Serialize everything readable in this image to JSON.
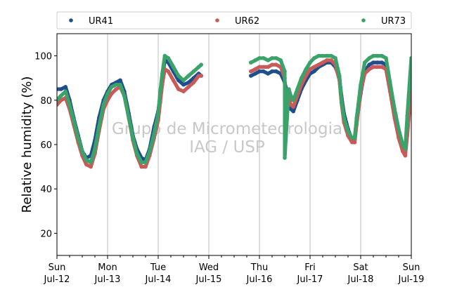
{
  "chart_data": {
    "type": "scatter",
    "ylabel": "Relative humidity (%)",
    "xlabel": "",
    "xlim": [
      0,
      7
    ],
    "ylim": [
      10,
      110
    ],
    "yticks": [
      20,
      40,
      60,
      80,
      100
    ],
    "xticks": [
      {
        "day": 0,
        "weekday": "Sun",
        "date": "Jul-12"
      },
      {
        "day": 1,
        "weekday": "Mon",
        "date": "Jul-13"
      },
      {
        "day": 2,
        "weekday": "Tue",
        "date": "Jul-14"
      },
      {
        "day": 3,
        "weekday": "Wed",
        "date": "Jul-15"
      },
      {
        "day": 4,
        "weekday": "Thu",
        "date": "Jul-16"
      },
      {
        "day": 5,
        "weekday": "Fri",
        "date": "Jul-17"
      },
      {
        "day": 6,
        "weekday": "Sat",
        "date": "Jul-18"
      },
      {
        "day": 7,
        "weekday": "Sun",
        "date": "Jul-19"
      }
    ],
    "grid": "vertical",
    "legend_position": "top",
    "watermark": [
      "Grupo de Micrometeorologia",
      "IAG / USP"
    ],
    "series": [
      {
        "name": "UR41",
        "color": "#1f4e8c",
        "points": [
          [
            0,
            85
          ],
          [
            0.08,
            85
          ],
          [
            0.17,
            86
          ],
          [
            0.25,
            80
          ],
          [
            0.33,
            72
          ],
          [
            0.42,
            64
          ],
          [
            0.5,
            57
          ],
          [
            0.58,
            54
          ],
          [
            0.67,
            55
          ],
          [
            0.75,
            62
          ],
          [
            0.83,
            72
          ],
          [
            0.92,
            80
          ],
          [
            1.0,
            84
          ],
          [
            1.08,
            87
          ],
          [
            1.17,
            88
          ],
          [
            1.25,
            89
          ],
          [
            1.33,
            84
          ],
          [
            1.42,
            74
          ],
          [
            1.5,
            64
          ],
          [
            1.58,
            58
          ],
          [
            1.67,
            54
          ],
          [
            1.75,
            53
          ],
          [
            1.83,
            58
          ],
          [
            1.92,
            68
          ],
          [
            2.0,
            75
          ],
          [
            2.04,
            82
          ],
          [
            2.08,
            90
          ],
          [
            2.13,
            98
          ],
          [
            2.2,
            97
          ],
          [
            2.3,
            93
          ],
          [
            2.4,
            89
          ],
          [
            2.5,
            87
          ],
          [
            2.6,
            88
          ],
          [
            2.7,
            90
          ],
          [
            2.8,
            92
          ],
          [
            2.85,
            91
          ],
          [
            3.83,
            91
          ],
          [
            3.92,
            92
          ],
          [
            4.0,
            93
          ],
          [
            4.08,
            93
          ],
          [
            4.17,
            92
          ],
          [
            4.25,
            93
          ],
          [
            4.33,
            93
          ],
          [
            4.42,
            92
          ],
          [
            4.5,
            88
          ],
          [
            4.58,
            80
          ],
          [
            4.62,
            76
          ],
          [
            4.67,
            75
          ],
          [
            4.75,
            80
          ],
          [
            4.83,
            85
          ],
          [
            4.92,
            89
          ],
          [
            5.0,
            92
          ],
          [
            5.08,
            93
          ],
          [
            5.17,
            95
          ],
          [
            5.25,
            96
          ],
          [
            5.33,
            97
          ],
          [
            5.42,
            97
          ],
          [
            5.5,
            95
          ],
          [
            5.58,
            90
          ],
          [
            5.62,
            82
          ],
          [
            5.67,
            74
          ],
          [
            5.75,
            67
          ],
          [
            5.83,
            62
          ],
          [
            5.88,
            61
          ],
          [
            5.92,
            70
          ],
          [
            6.0,
            83
          ],
          [
            6.08,
            93
          ],
          [
            6.17,
            96
          ],
          [
            6.25,
            97
          ],
          [
            6.33,
            97
          ],
          [
            6.42,
            97
          ],
          [
            6.5,
            96
          ],
          [
            6.58,
            86
          ],
          [
            6.67,
            75
          ],
          [
            6.75,
            66
          ],
          [
            6.83,
            60
          ],
          [
            6.88,
            58
          ],
          [
            6.92,
            68
          ],
          [
            7.0,
            88
          ]
        ]
      },
      {
        "name": "UR62",
        "color": "#c85a5a",
        "points": [
          [
            0,
            78
          ],
          [
            0.08,
            80
          ],
          [
            0.17,
            81
          ],
          [
            0.25,
            76
          ],
          [
            0.33,
            69
          ],
          [
            0.42,
            61
          ],
          [
            0.5,
            55
          ],
          [
            0.58,
            51
          ],
          [
            0.67,
            50
          ],
          [
            0.75,
            56
          ],
          [
            0.83,
            66
          ],
          [
            0.92,
            76
          ],
          [
            1.0,
            80
          ],
          [
            1.08,
            83
          ],
          [
            1.17,
            85
          ],
          [
            1.25,
            86
          ],
          [
            1.33,
            82
          ],
          [
            1.42,
            72
          ],
          [
            1.5,
            62
          ],
          [
            1.58,
            55
          ],
          [
            1.67,
            50
          ],
          [
            1.75,
            50
          ],
          [
            1.83,
            55
          ],
          [
            1.92,
            63
          ],
          [
            2.0,
            71
          ],
          [
            2.04,
            79
          ],
          [
            2.08,
            87
          ],
          [
            2.13,
            94
          ],
          [
            2.2,
            93
          ],
          [
            2.3,
            89
          ],
          [
            2.4,
            85
          ],
          [
            2.5,
            84
          ],
          [
            2.6,
            86
          ],
          [
            2.7,
            88
          ],
          [
            2.8,
            91
          ],
          [
            2.85,
            91
          ],
          [
            3.83,
            93
          ],
          [
            3.92,
            94
          ],
          [
            4.0,
            95
          ],
          [
            4.08,
            95
          ],
          [
            4.17,
            95
          ],
          [
            4.25,
            96
          ],
          [
            4.33,
            96
          ],
          [
            4.42,
            95
          ],
          [
            4.5,
            90
          ],
          [
            4.52,
            72
          ],
          [
            4.58,
            82
          ],
          [
            4.62,
            78
          ],
          [
            4.67,
            77
          ],
          [
            4.75,
            82
          ],
          [
            4.83,
            87
          ],
          [
            4.92,
            91
          ],
          [
            5.0,
            94
          ],
          [
            5.08,
            95
          ],
          [
            5.17,
            96
          ],
          [
            5.25,
            97
          ],
          [
            5.33,
            98
          ],
          [
            5.42,
            98
          ],
          [
            5.5,
            96
          ],
          [
            5.58,
            89
          ],
          [
            5.62,
            79
          ],
          [
            5.67,
            70
          ],
          [
            5.75,
            64
          ],
          [
            5.83,
            61
          ],
          [
            5.88,
            61
          ],
          [
            5.92,
            69
          ],
          [
            6.0,
            84
          ],
          [
            6.08,
            92
          ],
          [
            6.17,
            94
          ],
          [
            6.25,
            95
          ],
          [
            6.33,
            95
          ],
          [
            6.42,
            95
          ],
          [
            6.5,
            94
          ],
          [
            6.58,
            84
          ],
          [
            6.67,
            72
          ],
          [
            6.75,
            63
          ],
          [
            6.83,
            57
          ],
          [
            6.88,
            55
          ],
          [
            6.92,
            64
          ],
          [
            7.0,
            85
          ]
        ]
      },
      {
        "name": "UR73",
        "color": "#3aa36a",
        "points": [
          [
            0,
            80
          ],
          [
            0.08,
            82
          ],
          [
            0.17,
            84
          ],
          [
            0.25,
            78
          ],
          [
            0.33,
            71
          ],
          [
            0.42,
            63
          ],
          [
            0.5,
            57
          ],
          [
            0.58,
            53
          ],
          [
            0.67,
            52
          ],
          [
            0.75,
            58
          ],
          [
            0.83,
            68
          ],
          [
            0.92,
            78
          ],
          [
            1.0,
            83
          ],
          [
            1.08,
            86
          ],
          [
            1.17,
            87
          ],
          [
            1.25,
            87
          ],
          [
            1.33,
            82
          ],
          [
            1.42,
            72
          ],
          [
            1.5,
            63
          ],
          [
            1.58,
            56
          ],
          [
            1.67,
            52
          ],
          [
            1.75,
            52
          ],
          [
            1.83,
            57
          ],
          [
            1.92,
            65
          ],
          [
            2.0,
            74
          ],
          [
            2.04,
            84
          ],
          [
            2.08,
            92
          ],
          [
            2.13,
            100
          ],
          [
            2.2,
            99
          ],
          [
            2.3,
            95
          ],
          [
            2.4,
            91
          ],
          [
            2.5,
            89
          ],
          [
            2.6,
            91
          ],
          [
            2.7,
            93
          ],
          [
            2.8,
            95
          ],
          [
            2.85,
            96
          ],
          [
            3.83,
            97
          ],
          [
            3.92,
            98
          ],
          [
            4.0,
            99
          ],
          [
            4.08,
            99
          ],
          [
            4.17,
            98
          ],
          [
            4.25,
            99
          ],
          [
            4.33,
            99
          ],
          [
            4.42,
            98
          ],
          [
            4.5,
            93
          ],
          [
            4.5,
            54
          ],
          [
            4.58,
            85
          ],
          [
            4.62,
            82
          ],
          [
            4.67,
            80
          ],
          [
            4.75,
            85
          ],
          [
            4.83,
            90
          ],
          [
            4.92,
            94
          ],
          [
            5.0,
            97
          ],
          [
            5.08,
            99
          ],
          [
            5.17,
            100
          ],
          [
            5.25,
            100
          ],
          [
            5.33,
            100
          ],
          [
            5.42,
            100
          ],
          [
            5.5,
            99
          ],
          [
            5.58,
            91
          ],
          [
            5.62,
            80
          ],
          [
            5.67,
            72
          ],
          [
            5.75,
            66
          ],
          [
            5.83,
            63
          ],
          [
            5.88,
            63
          ],
          [
            5.92,
            72
          ],
          [
            6.0,
            87
          ],
          [
            6.08,
            97
          ],
          [
            6.17,
            99
          ],
          [
            6.25,
            100
          ],
          [
            6.33,
            100
          ],
          [
            6.42,
            100
          ],
          [
            6.5,
            99
          ],
          [
            6.58,
            88
          ],
          [
            6.67,
            76
          ],
          [
            6.75,
            67
          ],
          [
            6.83,
            60
          ],
          [
            6.88,
            58
          ],
          [
            6.92,
            73
          ],
          [
            7.0,
            99
          ]
        ]
      }
    ]
  }
}
